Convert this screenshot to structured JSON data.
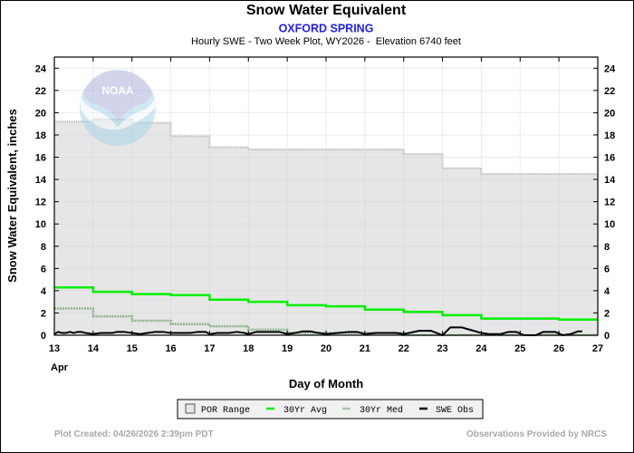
{
  "chart_data": {
    "type": "line",
    "title": "Snow Water Equivalent",
    "subtitle": "OXFORD SPRING",
    "subtitle2": "Hourly SWE - Two Week Plot, WY2026 -  Elevation 6740 feet",
    "xlabel": "Day of Month",
    "ylabel": "Snow Water Equivalent, inches",
    "x_month_label": "Apr",
    "xlim": [
      13,
      27
    ],
    "ylim": [
      0,
      25
    ],
    "xticks": [
      13,
      14,
      15,
      16,
      17,
      18,
      19,
      20,
      21,
      22,
      23,
      24,
      25,
      26,
      27
    ],
    "yticks": [
      0,
      2,
      4,
      6,
      8,
      10,
      12,
      14,
      16,
      18,
      20,
      22,
      24
    ],
    "grid": true,
    "legend_position": "bottom",
    "series": [
      {
        "name": "POR Range",
        "kind": "step-area",
        "color": "#e6e6e6",
        "edge_color": "#b4b4b4",
        "x": [
          13,
          14,
          15,
          16,
          17,
          18,
          19,
          20,
          21,
          22,
          23,
          24,
          25,
          26
        ],
        "x_end": 27,
        "lower": 0,
        "upper": [
          19.2,
          19.4,
          19.1,
          17.9,
          16.9,
          16.7,
          16.7,
          16.7,
          16.7,
          16.3,
          15.0,
          14.5,
          14.5,
          14.5
        ]
      },
      {
        "name": "30Yr Avg",
        "kind": "step",
        "color": "#00f000",
        "x": [
          13,
          14,
          15,
          16,
          17,
          18,
          19,
          20,
          21,
          22,
          23,
          24,
          25,
          26
        ],
        "x_end": 27,
        "values": [
          4.3,
          3.9,
          3.7,
          3.6,
          3.2,
          3.0,
          2.7,
          2.6,
          2.3,
          2.1,
          1.8,
          1.5,
          1.5,
          1.4
        ]
      },
      {
        "name": "30Yr Med",
        "kind": "step",
        "color": "#8db48d",
        "x": [
          13,
          14,
          15,
          16,
          17,
          18,
          19,
          20,
          21,
          22,
          23,
          24,
          25,
          26
        ],
        "x_end": 27,
        "values": [
          2.4,
          1.7,
          1.3,
          1.0,
          0.8,
          0.5,
          0.2,
          0.2,
          0.2,
          0.0,
          0.0,
          0.0,
          0.0,
          0.0
        ]
      },
      {
        "name": "SWE Obs",
        "kind": "line",
        "color": "#000000",
        "x": [
          13.0,
          13.1,
          13.2,
          13.3,
          13.4,
          13.5,
          13.6,
          13.7,
          13.8,
          14.0,
          14.2,
          14.5,
          14.6,
          14.8,
          15.0,
          15.2,
          15.4,
          15.6,
          15.8,
          16.0,
          16.2,
          16.5,
          16.7,
          16.9,
          17.0,
          17.2,
          17.5,
          17.7,
          17.9,
          18.0,
          18.2,
          18.5,
          18.8,
          19.0,
          19.2,
          19.4,
          19.6,
          19.8,
          20.0,
          20.3,
          20.6,
          20.8,
          21.0,
          21.3,
          21.5,
          21.8,
          22.0,
          22.4,
          22.7,
          23.0,
          23.2,
          23.5,
          23.7,
          23.9,
          24.0,
          24.2,
          24.5,
          24.7,
          24.9,
          25.1,
          25.4,
          25.6,
          25.9,
          26.1,
          26.3,
          26.5,
          26.6
        ],
        "values": [
          0.1,
          0.3,
          0.2,
          0.2,
          0.3,
          0.2,
          0.3,
          0.3,
          0.2,
          0.1,
          0.2,
          0.2,
          0.3,
          0.3,
          0.2,
          0.1,
          0.2,
          0.3,
          0.3,
          0.2,
          0.2,
          0.2,
          0.3,
          0.3,
          0.1,
          0.2,
          0.2,
          0.3,
          0.2,
          0.1,
          0.3,
          0.3,
          0.3,
          0.1,
          0.2,
          0.35,
          0.35,
          0.2,
          0.1,
          0.2,
          0.3,
          0.3,
          0.1,
          0.2,
          0.2,
          0.2,
          0.1,
          0.4,
          0.4,
          0.0,
          0.7,
          0.7,
          0.5,
          0.3,
          0.2,
          0.1,
          0.1,
          0.3,
          0.3,
          0.0,
          0.0,
          0.3,
          0.3,
          0.0,
          0.1,
          0.35,
          0.35
        ]
      }
    ]
  },
  "logo": {
    "name": "noaa-logo",
    "text": "NOAA"
  },
  "footer": {
    "created": "Plot Created: 04/26/2026 2:39pm PDT",
    "credit": "Observations Provided by NRCS"
  }
}
